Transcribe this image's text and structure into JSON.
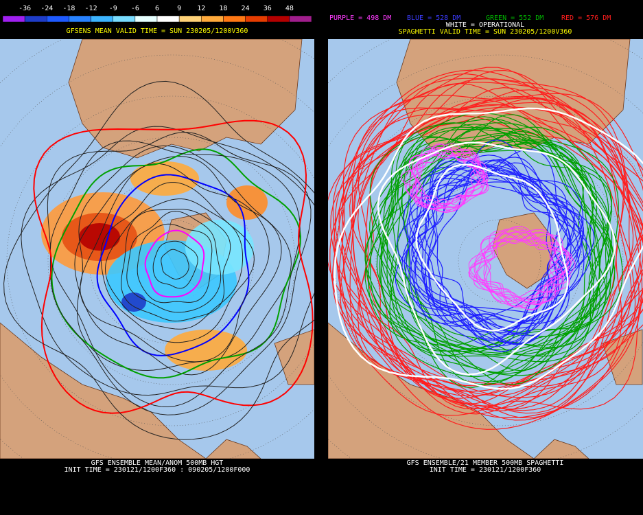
{
  "left_panel": {
    "colorbar": {
      "labels": [
        -36,
        -24,
        -18,
        -12,
        -9,
        -6,
        6,
        9,
        12,
        18,
        24,
        36,
        48
      ],
      "colors": [
        "#a020f0",
        "#1e3cc8",
        "#1e5aff",
        "#2882ff",
        "#3cb4ff",
        "#78dcff",
        "#e6ffff",
        "#ffffff",
        "#ffd278",
        "#ffaa3c",
        "#ff7814",
        "#e63c00",
        "#b40000",
        "#a01e8c"
      ]
    },
    "title": "GFSENS MEAN VALID TIME = SUN 230205/1200V360",
    "footer": [
      "GFS ENSEMBLE MEAN/ANOM 500MB HGT",
      "INIT TIME = 230121/1200F360 : 090205/1200F000"
    ]
  },
  "right_panel": {
    "legend": [
      {
        "text": "PURPLE = 498 DM",
        "color": "#ff3cff"
      },
      {
        "text": "BLUE = 528 DM",
        "color": "#3c3cff"
      },
      {
        "text": "GREEN = 552 DM",
        "color": "#00b400"
      },
      {
        "text": "RED = 576 DM",
        "color": "#ff1e1e"
      }
    ],
    "operational": "WHITE = OPERATIONAL",
    "title": "SPAGHETTI VALID TIME = SUN 230205/1200V360",
    "footer": [
      "GFS ENSEMBLE/21 MEMBER 500MB SPAGHETTI",
      "INIT TIME = 230121/1200F360"
    ]
  }
}
